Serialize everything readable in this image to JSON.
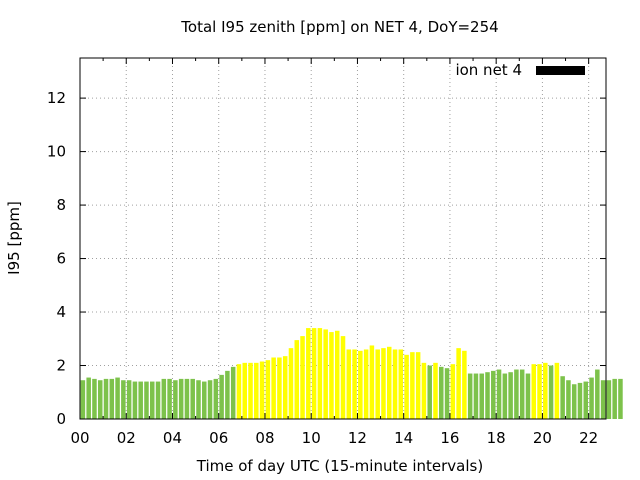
{
  "chart_data": {
    "type": "bar",
    "title": "Total I95 zenith [ppm] on NET 4, DoY=254",
    "xlabel": "Time of day UTC (15-minute intervals)",
    "ylabel": "I95 [ppm]",
    "xlim": [
      0,
      22.75
    ],
    "ylim": [
      0,
      13.5
    ],
    "x_ticks": [
      "00",
      "02",
      "04",
      "06",
      "08",
      "10",
      "12",
      "14",
      "16",
      "18",
      "20",
      "22"
    ],
    "y_ticks": [
      "0",
      "2",
      "4",
      "6",
      "8",
      "10",
      "12"
    ],
    "grid": true,
    "legend": {
      "label": "ion net 4",
      "position": "top-right"
    },
    "bar_interval_hours": 0.25,
    "colors": {
      "green": "#7dc24b",
      "yellow": "#ffff00",
      "legend": "#000000"
    },
    "values": [
      1.45,
      1.55,
      1.5,
      1.45,
      1.5,
      1.5,
      1.55,
      1.45,
      1.45,
      1.4,
      1.4,
      1.4,
      1.4,
      1.4,
      1.5,
      1.5,
      1.45,
      1.5,
      1.5,
      1.5,
      1.45,
      1.4,
      1.45,
      1.5,
      1.65,
      1.8,
      1.95,
      2.05,
      2.1,
      2.1,
      2.1,
      2.15,
      2.2,
      2.3,
      2.3,
      2.35,
      2.65,
      2.95,
      3.1,
      3.4,
      3.4,
      3.4,
      3.35,
      3.25,
      3.3,
      3.1,
      2.6,
      2.6,
      2.55,
      2.6,
      2.75,
      2.6,
      2.65,
      2.7,
      2.6,
      2.6,
      2.4,
      2.5,
      2.5,
      2.1,
      2.0,
      2.1,
      1.95,
      1.9,
      2.05,
      2.65,
      2.55,
      1.7,
      1.7,
      1.7,
      1.75,
      1.8,
      1.85,
      1.7,
      1.75,
      1.85,
      1.85,
      1.7,
      2.05,
      2.05,
      2.1,
      2.0,
      2.1,
      1.6,
      1.45,
      1.3,
      1.35,
      1.4,
      1.55,
      1.85,
      1.45,
      1.45,
      1.5,
      1.5
    ],
    "bar_colors": [
      "green",
      "green",
      "green",
      "green",
      "green",
      "green",
      "green",
      "green",
      "green",
      "green",
      "green",
      "green",
      "green",
      "green",
      "green",
      "green",
      "green",
      "green",
      "green",
      "green",
      "green",
      "green",
      "green",
      "green",
      "green",
      "green",
      "green",
      "yellow",
      "yellow",
      "yellow",
      "yellow",
      "yellow",
      "yellow",
      "yellow",
      "yellow",
      "yellow",
      "yellow",
      "yellow",
      "yellow",
      "yellow",
      "yellow",
      "yellow",
      "yellow",
      "yellow",
      "yellow",
      "yellow",
      "yellow",
      "yellow",
      "yellow",
      "yellow",
      "yellow",
      "yellow",
      "yellow",
      "yellow",
      "yellow",
      "yellow",
      "yellow",
      "yellow",
      "yellow",
      "yellow",
      "green",
      "yellow",
      "green",
      "green",
      "yellow",
      "yellow",
      "yellow",
      "green",
      "green",
      "green",
      "green",
      "green",
      "green",
      "green",
      "green",
      "green",
      "green",
      "green",
      "yellow",
      "yellow",
      "yellow",
      "green",
      "yellow",
      "green",
      "green",
      "green",
      "green",
      "green",
      "green",
      "green",
      "green",
      "green",
      "green",
      "green"
    ]
  }
}
